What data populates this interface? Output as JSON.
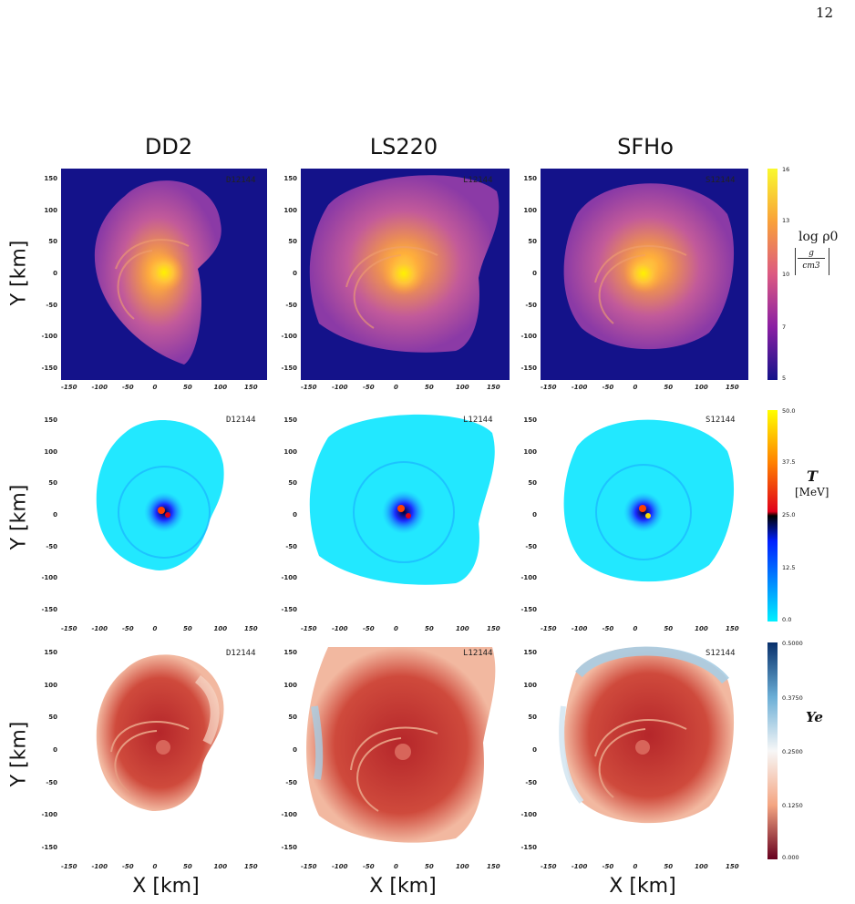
{
  "page_number": "12",
  "columns": [
    "DD2",
    "LS220",
    "SFHo"
  ],
  "run_labels": [
    "D12144",
    "L12144",
    "S12144"
  ],
  "row_label": "Y [km]",
  "x_label": "X [km]",
  "x_ticks": [
    "-150",
    "-100",
    "-50",
    "0",
    "50",
    "100",
    "150"
  ],
  "y_ticks": [
    "150",
    "100",
    "50",
    "0",
    "-50",
    "-100",
    "-150"
  ],
  "colorbars": {
    "density": {
      "label": "log ρ0",
      "unit_num": "g",
      "unit_den": "cm3",
      "ticks": [
        "16",
        "13",
        "10",
        "7",
        "5"
      ]
    },
    "temperature": {
      "label": "T",
      "unit": "[MeV]",
      "ticks": [
        "50.0",
        "37.5",
        "25.0",
        "12.5",
        "0.0"
      ]
    },
    "ye": {
      "label": "Ye",
      "ticks": [
        "0.5000",
        "0.3750",
        "0.2500",
        "0.1250",
        "0.000"
      ]
    }
  },
  "colors": {
    "density_bg": "#14128a",
    "temp_bg": "#ffffff",
    "ye_bg": "#ffffff"
  }
}
